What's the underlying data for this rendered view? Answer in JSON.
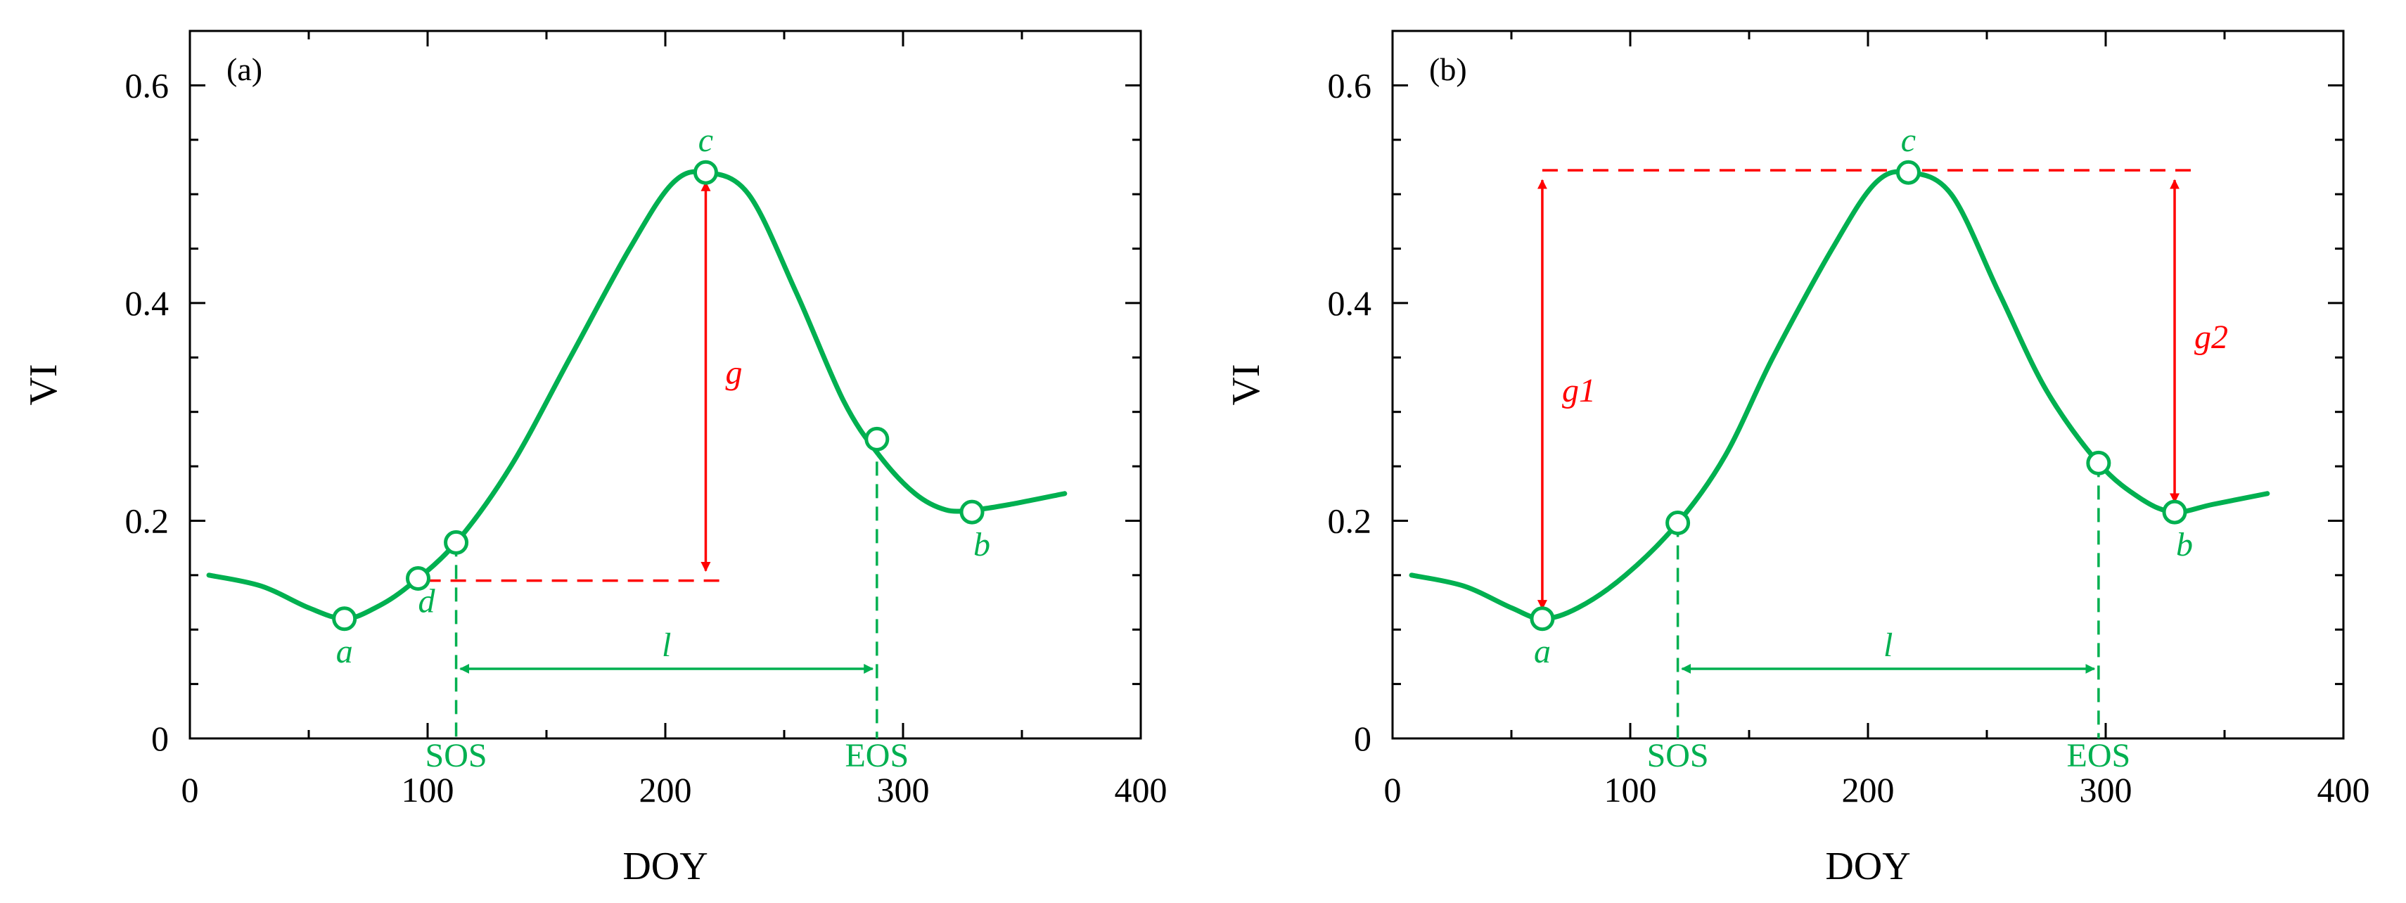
{
  "colors": {
    "curve": "#00b050",
    "annotation_red": "#ff0000",
    "axis": "#000000"
  },
  "chart_data": [
    {
      "type": "line",
      "panel_label": "(a)",
      "xlabel": "DOY",
      "ylabel": "VI",
      "xlim": [
        0,
        400
      ],
      "ylim": [
        0,
        0.65
      ],
      "x_ticks": [
        0,
        100,
        200,
        300,
        400
      ],
      "x_tick_labels": [
        "0",
        "100",
        "200",
        "300",
        "400"
      ],
      "y_ticks": [
        0,
        0.2,
        0.4,
        0.6
      ],
      "y_tick_labels": [
        "0",
        "0.2",
        "0.4",
        "0.6"
      ],
      "curve": {
        "x": [
          8,
          30,
          50,
          65,
          78,
          92,
          112,
          135,
          160,
          185,
          203,
          217,
          235,
          255,
          275,
          290,
          305,
          318,
          330,
          345,
          368
        ],
        "y": [
          0.15,
          0.14,
          0.12,
          0.11,
          0.12,
          0.14,
          0.18,
          0.25,
          0.35,
          0.45,
          0.51,
          0.52,
          0.5,
          0.41,
          0.31,
          0.26,
          0.225,
          0.21,
          0.21,
          0.215,
          0.225
        ]
      },
      "points": [
        {
          "name": "a",
          "x": 65,
          "y": 0.11,
          "label": "a"
        },
        {
          "name": "d",
          "x": 96,
          "y": 0.147,
          "label": "d"
        },
        {
          "name": "sos",
          "x": 112,
          "y": 0.18,
          "label": ""
        },
        {
          "name": "c",
          "x": 217,
          "y": 0.52,
          "label": "c"
        },
        {
          "name": "eos",
          "x": 289,
          "y": 0.275,
          "label": ""
        },
        {
          "name": "b",
          "x": 329,
          "y": 0.208,
          "label": "b"
        }
      ],
      "sos": {
        "x": 112,
        "label": "SOS"
      },
      "eos": {
        "x": 289,
        "label": "EOS"
      },
      "length_label": "l",
      "amplitude_arrows": [
        {
          "x": 217,
          "y_from": 0.52,
          "y_to": 0.145,
          "label": "g"
        }
      ],
      "red_dashed_lines": [
        {
          "x_from": 99,
          "x_to": 225,
          "y": 0.145
        }
      ]
    },
    {
      "type": "line",
      "panel_label": "(b)",
      "xlabel": "DOY",
      "ylabel": "VI",
      "xlim": [
        0,
        400
      ],
      "ylim": [
        0,
        0.65
      ],
      "x_ticks": [
        0,
        100,
        200,
        300,
        400
      ],
      "x_tick_labels": [
        "0",
        "100",
        "200",
        "300",
        "400"
      ],
      "y_ticks": [
        0,
        0.2,
        0.4,
        0.6
      ],
      "y_tick_labels": [
        "0",
        "0.2",
        "0.4",
        "0.6"
      ],
      "curve": {
        "x": [
          8,
          30,
          50,
          63,
          78,
          98,
          120,
          140,
          160,
          185,
          203,
          217,
          235,
          255,
          275,
          297,
          315,
          329,
          345,
          368
        ],
        "y": [
          0.15,
          0.14,
          0.12,
          0.11,
          0.12,
          0.15,
          0.198,
          0.26,
          0.35,
          0.45,
          0.51,
          0.52,
          0.5,
          0.41,
          0.32,
          0.253,
          0.22,
          0.208,
          0.215,
          0.225
        ]
      },
      "points": [
        {
          "name": "a",
          "x": 63,
          "y": 0.11,
          "label": "a"
        },
        {
          "name": "sos",
          "x": 120,
          "y": 0.198,
          "label": ""
        },
        {
          "name": "c",
          "x": 217,
          "y": 0.52,
          "label": "c"
        },
        {
          "name": "eos",
          "x": 297,
          "y": 0.253,
          "label": ""
        },
        {
          "name": "b",
          "x": 329,
          "y": 0.208,
          "label": "b"
        }
      ],
      "sos": {
        "x": 120,
        "label": "SOS"
      },
      "eos": {
        "x": 297,
        "label": "EOS"
      },
      "length_label": "l",
      "amplitude_arrows": [
        {
          "x": 63,
          "y_from": 0.522,
          "y_to": 0.11,
          "label": "g1"
        },
        {
          "x": 329,
          "y_from": 0.522,
          "y_to": 0.208,
          "label": "g2"
        }
      ],
      "red_dashed_lines": [
        {
          "x_from": 63,
          "x_to": 336,
          "y": 0.522
        }
      ]
    }
  ]
}
